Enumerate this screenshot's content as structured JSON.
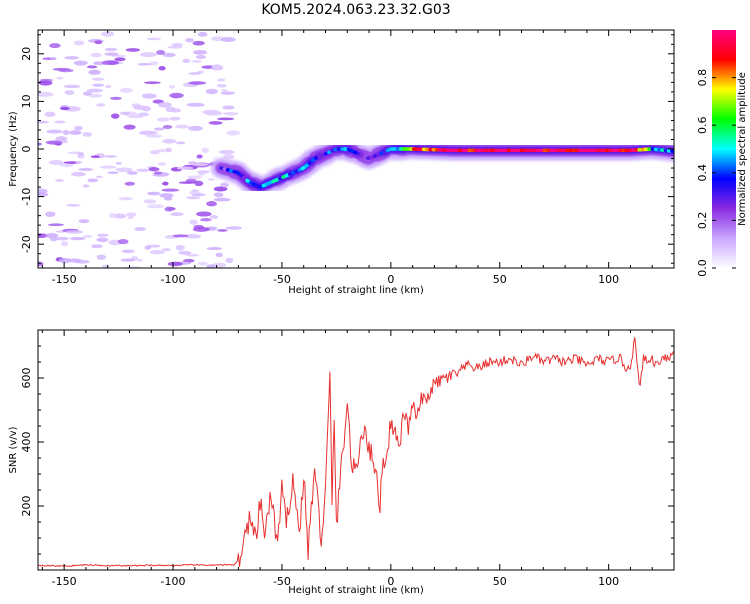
{
  "chart_data": [
    {
      "type": "heatmap",
      "title": "KOM5.2024.063.23.32.G03",
      "xlabel": "Height of straight line (km)",
      "ylabel": "Frequency (Hz)",
      "xlim": [
        -162,
        130
      ],
      "ylim": [
        -25,
        25
      ],
      "xticks": [
        -150,
        -100,
        -50,
        0,
        50,
        100
      ],
      "yticks": [
        -20,
        -10,
        0,
        10,
        20
      ],
      "colorbar": {
        "label": "Normalized spectral amplitude",
        "range": [
          0,
          1
        ],
        "ticks": [
          0.0,
          0.2,
          0.4,
          0.6,
          0.8
        ],
        "colormap": "rainbow",
        "colors": [
          "#ffffff",
          "#c9a6ff",
          "#8a2be2",
          "#0000ff",
          "#00ffff",
          "#00ff00",
          "#ffff00",
          "#ff0000",
          "#ff0080"
        ]
      },
      "ridge": {
        "x": [
          -78,
          -70,
          -65,
          -60,
          -55,
          -50,
          -45,
          -40,
          -35,
          -30,
          -25,
          -20,
          -15,
          -10,
          -5,
          0,
          10,
          30,
          60,
          90,
          110,
          120,
          130
        ],
        "y": [
          -4,
          -5,
          -7,
          -8,
          -7,
          -6,
          -5,
          -4,
          -2,
          -1,
          0,
          0,
          -1,
          -2,
          -1,
          0,
          0,
          -0.3,
          -0.3,
          -0.3,
          -0.3,
          0,
          -0.5
        ],
        "amplitude": [
          0.3,
          0.35,
          0.4,
          0.45,
          0.45,
          0.45,
          0.45,
          0.45,
          0.4,
          0.35,
          0.4,
          0.4,
          0.35,
          0.3,
          0.4,
          0.45,
          0.8,
          0.95,
          0.95,
          0.95,
          0.95,
          0.5,
          0.4
        ]
      }
    },
    {
      "type": "line",
      "title": "",
      "xlabel": "Height of straight line (km)",
      "ylabel": "SNR (v/v)",
      "xlim": [
        -162,
        130
      ],
      "ylim": [
        0,
        750
      ],
      "xticks": [
        -150,
        -100,
        -50,
        0,
        50,
        100
      ],
      "yticks": [
        200,
        400,
        600
      ],
      "color": "#e83030",
      "series": [
        {
          "x": [
            -162,
            -150,
            -140,
            -130,
            -120,
            -110,
            -100,
            -90,
            -80,
            -72,
            -70,
            -68,
            -65,
            -62,
            -60,
            -58,
            -55,
            -52,
            -50,
            -48,
            -45,
            -42,
            -40,
            -38,
            -35,
            -32,
            -30,
            -28,
            -27,
            -26,
            -25,
            -22,
            -20,
            -18,
            -16,
            -14,
            -12,
            -10,
            -8,
            -6,
            -5,
            -4,
            -2,
            0,
            2,
            4,
            6,
            8,
            10,
            12,
            14,
            16,
            18,
            20,
            25,
            30,
            35,
            40,
            45,
            50,
            55,
            60,
            65,
            70,
            75,
            80,
            85,
            90,
            95,
            100,
            105,
            108,
            110,
            112,
            114,
            116,
            118,
            120,
            122,
            125,
            128,
            130
          ],
          "y": [
            15,
            12,
            16,
            14,
            13,
            15,
            14,
            16,
            15,
            17,
            30,
            70,
            160,
            90,
            210,
            120,
            230,
            80,
            250,
            140,
            290,
            110,
            300,
            60,
            320,
            90,
            250,
            600,
            200,
            480,
            140,
            380,
            520,
            330,
            300,
            400,
            460,
            370,
            360,
            250,
            200,
            320,
            360,
            460,
            430,
            380,
            500,
            440,
            520,
            470,
            540,
            520,
            560,
            580,
            600,
            610,
            640,
            630,
            650,
            650,
            660,
            640,
            670,
            650,
            660,
            650,
            660,
            640,
            660,
            650,
            665,
            630,
            640,
            720,
            570,
            660,
            650,
            660,
            640,
            670,
            660,
            690
          ]
        }
      ]
    }
  ]
}
